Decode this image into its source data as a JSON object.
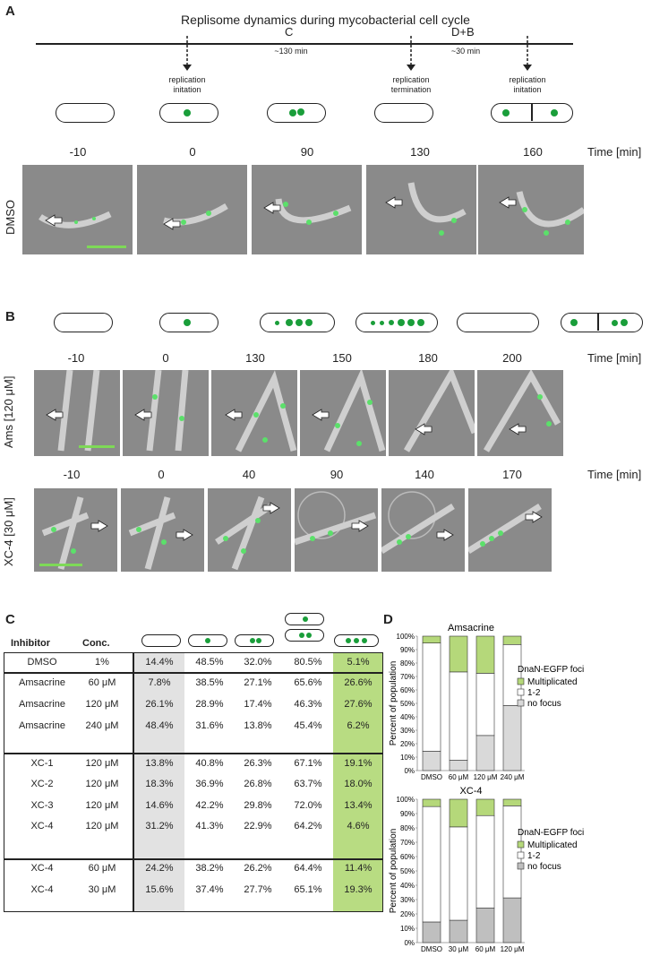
{
  "panelA": {
    "letter": "A",
    "title": "Replisome dynamics during mycobacterial cell cycle",
    "phaseC": "C",
    "phaseC_time": "~130 min",
    "phaseDB": "D+B",
    "phaseDB_time": "~30 min",
    "events": [
      "replication\ninitation",
      "replication\ntermination",
      "replication\ninitation"
    ],
    "times": [
      "-10",
      "0",
      "90",
      "130",
      "160"
    ],
    "time_unit": "Time [min]",
    "row_label": "DMSO"
  },
  "panelB": {
    "letter": "B",
    "times_ams": [
      "-10",
      "0",
      "130",
      "150",
      "180",
      "200"
    ],
    "times_xc4": [
      "-10",
      "0",
      "40",
      "90",
      "140",
      "170"
    ],
    "time_unit": "Time [min]",
    "row_label_ams": "Ams [120 μM]",
    "row_label_xc4": "XC-4 [30 μM]"
  },
  "panelC": {
    "letter": "C",
    "headers": [
      "Inhibitor",
      "Conc."
    ],
    "rows": [
      [
        "DMSO",
        "1%",
        "14.4%",
        "48.5%",
        "32.0%",
        "80.5%",
        "5.1%"
      ],
      [
        "Amsacrine",
        "60 μM",
        "7.8%",
        "38.5%",
        "27.1%",
        "65.6%",
        "26.6%"
      ],
      [
        "Amsacrine",
        "120 μM",
        "26.1%",
        "28.9%",
        "17.4%",
        "46.3%",
        "27.6%"
      ],
      [
        "Amsacrine",
        "240 μM",
        "48.4%",
        "31.6%",
        "13.8%",
        "45.4%",
        "6.2%"
      ],
      [
        "XC-1",
        "120 μM",
        "13.8%",
        "40.8%",
        "26.3%",
        "67.1%",
        "19.1%"
      ],
      [
        "XC-2",
        "120 μM",
        "18.3%",
        "36.9%",
        "26.8%",
        "63.7%",
        "18.0%"
      ],
      [
        "XC-3",
        "120 μM",
        "14.6%",
        "42.2%",
        "29.8%",
        "72.0%",
        "13.4%"
      ],
      [
        "XC-4",
        "120 μM",
        "31.2%",
        "41.3%",
        "22.9%",
        "64.2%",
        "4.6%"
      ],
      [
        "XC-4",
        "60 μM",
        "24.2%",
        "38.2%",
        "26.2%",
        "64.4%",
        "11.4%"
      ],
      [
        "XC-4",
        "30 μM",
        "15.6%",
        "37.4%",
        "27.7%",
        "65.1%",
        "19.3%"
      ]
    ]
  },
  "panelD": {
    "letter": "D",
    "ylabel": "Percent of population",
    "legend_title": "DnaN-EGFP foci",
    "legend": [
      "Multiplicated",
      "1-2",
      "no focus"
    ],
    "yticks": [
      "0%",
      "10%",
      "20%",
      "30%",
      "40%",
      "50%",
      "60%",
      "70%",
      "80%",
      "90%",
      "100%"
    ]
  },
  "chart_data": [
    {
      "type": "bar",
      "stacked": true,
      "title": "Amsacrine",
      "ylabel": "Percent of population",
      "categories": [
        "DMSO",
        "60 μM",
        "120 μM",
        "240 μM"
      ],
      "ylim": [
        0,
        100
      ],
      "series": [
        {
          "name": "no focus",
          "values": [
            14.4,
            7.8,
            26.1,
            48.4
          ],
          "color": "#d9d9d9"
        },
        {
          "name": "1-2",
          "values": [
            80.5,
            65.6,
            46.3,
            45.4
          ],
          "color": "#ffffff"
        },
        {
          "name": "Multiplicated",
          "values": [
            5.1,
            26.6,
            27.6,
            6.2
          ],
          "color": "#b5d87a"
        }
      ],
      "legend_title": "DnaN-EGFP foci",
      "legend_position": "right"
    },
    {
      "type": "bar",
      "stacked": true,
      "title": "XC-4",
      "ylabel": "Percent of population",
      "categories": [
        "DMSO",
        "30 μM",
        "60 μM",
        "120 μM"
      ],
      "ylim": [
        0,
        100
      ],
      "series": [
        {
          "name": "no focus",
          "values": [
            14.4,
            15.6,
            24.2,
            31.2
          ],
          "color": "#bfbfbf"
        },
        {
          "name": "1-2",
          "values": [
            80.5,
            65.1,
            64.4,
            64.2
          ],
          "color": "#ffffff"
        },
        {
          "name": "Multiplicated",
          "values": [
            5.1,
            19.3,
            11.4,
            4.6
          ],
          "color": "#b5d87a"
        }
      ],
      "legend_title": "DnaN-EGFP foci",
      "legend_position": "right"
    }
  ]
}
